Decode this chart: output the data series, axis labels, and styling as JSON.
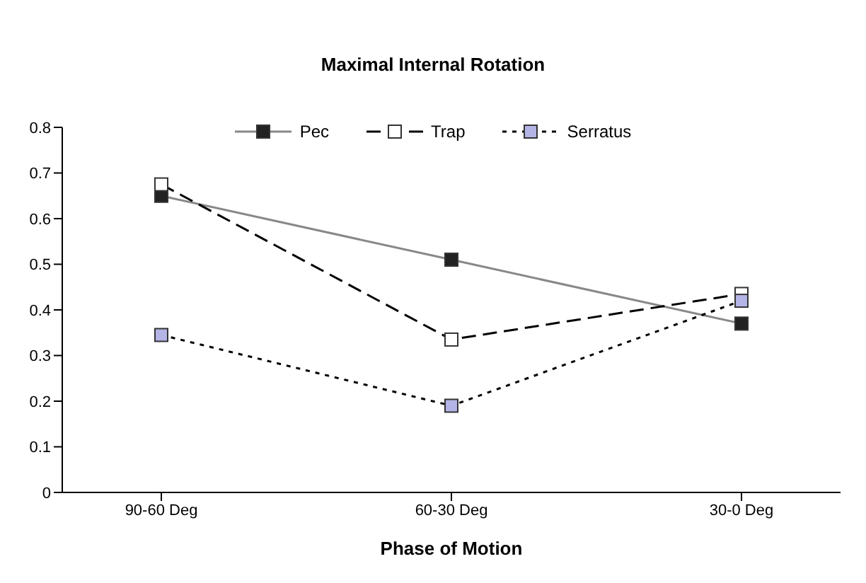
{
  "chart_data": {
    "type": "line",
    "title": "Maximal Internal Rotation",
    "xlabel": "Phase of Motion",
    "categories": [
      "90-60 Deg",
      "60-30 Deg",
      "30-0 Deg"
    ],
    "series": [
      {
        "name": "Pec",
        "color": "#222222",
        "values": [
          0.65,
          0.51,
          0.37
        ],
        "line_style": "solid"
      },
      {
        "name": "Trap",
        "color": "#ffffff",
        "values": [
          0.675,
          0.335,
          0.435
        ],
        "line_style": "dashed"
      },
      {
        "name": "Serratus",
        "color": "#b4b4e6",
        "values": [
          0.345,
          0.19,
          0.42
        ],
        "line_style": "dotted"
      }
    ],
    "ylim": [
      0,
      0.8
    ],
    "yticks": [
      0,
      0.1,
      0.2,
      0.3,
      0.4,
      0.5,
      0.6,
      0.7,
      0.8
    ],
    "grid": false,
    "legend": "top",
    "marker": "square"
  }
}
